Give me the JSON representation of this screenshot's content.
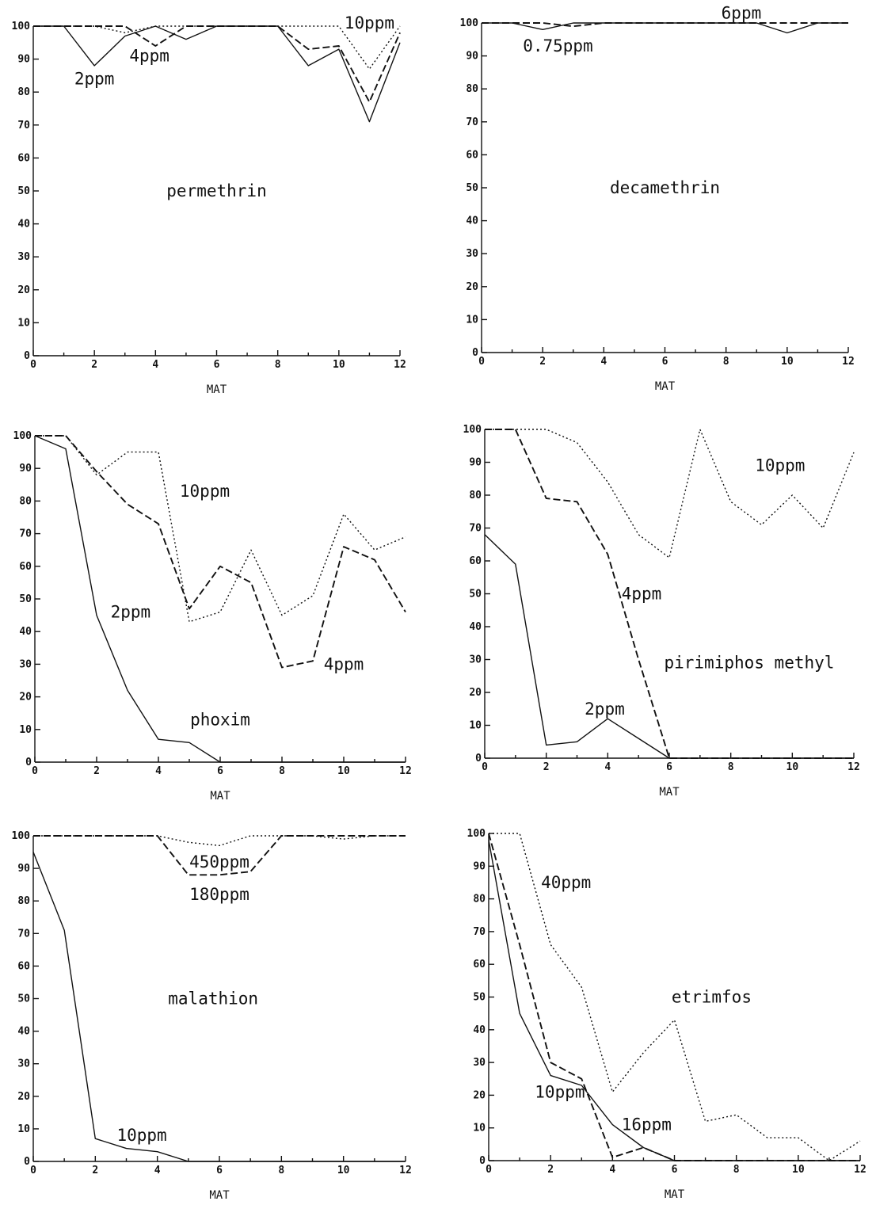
{
  "chart_data": [
    {
      "type": "line",
      "xlabel": "MAT",
      "ylabel": "",
      "xlim": [
        0,
        12
      ],
      "ylim": [
        0,
        100
      ],
      "x_ticks": [
        "0",
        "2",
        "4",
        "6",
        "8",
        "10",
        "12"
      ],
      "y_ticks": [
        "0",
        "10",
        "20",
        "30",
        "40",
        "50",
        "60",
        "70",
        "80",
        "90",
        "100"
      ],
      "name": "permethrin",
      "series": [
        {
          "name": "2ppm",
          "style": "solid",
          "x": [
            0,
            1,
            2,
            3,
            4,
            5,
            6,
            7,
            8,
            9,
            10,
            11,
            12
          ],
          "values": [
            100,
            100,
            88,
            97,
            100,
            96,
            100,
            100,
            100,
            88,
            93,
            71,
            95
          ]
        },
        {
          "name": "4ppm",
          "style": "dashed",
          "x": [
            0,
            1,
            2,
            3,
            4,
            5,
            6,
            7,
            8,
            9,
            10,
            11,
            12
          ],
          "values": [
            100,
            100,
            100,
            100,
            94,
            100,
            100,
            100,
            100,
            93,
            94,
            77,
            98
          ]
        },
        {
          "name": "10ppm",
          "style": "dotted",
          "x": [
            0,
            1,
            2,
            3,
            4,
            5,
            6,
            7,
            8,
            9,
            10,
            11,
            12
          ],
          "values": [
            100,
            100,
            100,
            98,
            100,
            100,
            100,
            100,
            100,
            100,
            100,
            87,
            100
          ]
        }
      ],
      "annotations": [
        {
          "text": "permethrin",
          "x": 6,
          "y": 50
        },
        {
          "text": "2ppm",
          "x": 2,
          "y": 84
        },
        {
          "text": "4ppm",
          "x": 3.8,
          "y": 91
        },
        {
          "text": "10ppm",
          "x": 11,
          "y": 101
        }
      ]
    },
    {
      "type": "line",
      "xlabel": "MAT",
      "ylabel": "",
      "xlim": [
        0,
        12
      ],
      "ylim": [
        0,
        100
      ],
      "x_ticks": [
        "0",
        "2",
        "4",
        "6",
        "8",
        "10",
        "12"
      ],
      "y_ticks": [
        "0",
        "10",
        "20",
        "30",
        "40",
        "50",
        "60",
        "70",
        "80",
        "90",
        "100"
      ],
      "name": "decamethrin",
      "series": [
        {
          "name": "0.75ppm",
          "style": "solid",
          "x": [
            0,
            1,
            2,
            3,
            4,
            5,
            6,
            7,
            8,
            9,
            10,
            11,
            12
          ],
          "values": [
            100,
            100,
            98,
            100,
            100,
            100,
            100,
            100,
            100,
            100,
            97,
            100,
            100
          ]
        },
        {
          "name": "6ppm",
          "style": "dashed",
          "x": [
            0,
            1,
            2,
            3,
            4,
            5,
            6,
            7,
            8,
            9,
            10,
            11,
            12
          ],
          "values": [
            100,
            100,
            100,
            99,
            100,
            100,
            100,
            100,
            100,
            100,
            100,
            100,
            100
          ]
        }
      ],
      "annotations": [
        {
          "text": "decamethrin",
          "x": 6,
          "y": 50
        },
        {
          "text": "0.75ppm",
          "x": 2.5,
          "y": 93
        },
        {
          "text": "6ppm",
          "x": 8.5,
          "y": 103
        }
      ]
    },
    {
      "type": "line",
      "xlabel": "MAT",
      "ylabel": "",
      "xlim": [
        0,
        12
      ],
      "ylim": [
        0,
        100
      ],
      "x_ticks": [
        "0",
        "2",
        "4",
        "6",
        "8",
        "10",
        "12"
      ],
      "y_ticks": [
        "0",
        "10",
        "20",
        "30",
        "40",
        "50",
        "60",
        "70",
        "80",
        "90",
        "100"
      ],
      "name": "phoxim",
      "series": [
        {
          "name": "2ppm",
          "style": "solid",
          "x": [
            0,
            1,
            2,
            3,
            4,
            5,
            6,
            7,
            8,
            9,
            10,
            11,
            12
          ],
          "values": [
            100,
            96,
            45,
            22,
            7,
            6,
            0,
            0,
            0,
            0,
            0,
            0,
            0
          ]
        },
        {
          "name": "4ppm",
          "style": "dashed",
          "x": [
            0,
            1,
            2,
            3,
            4,
            5,
            6,
            7,
            8,
            9,
            10,
            11,
            12
          ],
          "values": [
            100,
            100,
            89,
            79,
            73,
            47,
            60,
            55,
            29,
            31,
            66,
            62,
            46
          ]
        },
        {
          "name": "10ppm",
          "style": "dotted",
          "x": [
            0,
            1,
            2,
            3,
            4,
            5,
            6,
            7,
            8,
            9,
            10,
            11,
            12
          ],
          "values": [
            100,
            100,
            88,
            95,
            95,
            43,
            46,
            65,
            45,
            51,
            76,
            65,
            69
          ]
        }
      ],
      "annotations": [
        {
          "text": "phoxim",
          "x": 6,
          "y": 13
        },
        {
          "text": "2ppm",
          "x": 3.1,
          "y": 46
        },
        {
          "text": "4ppm",
          "x": 10,
          "y": 30
        },
        {
          "text": "10ppm",
          "x": 5.5,
          "y": 83
        }
      ]
    },
    {
      "type": "line",
      "xlabel": "MAT",
      "ylabel": "",
      "xlim": [
        0,
        12
      ],
      "ylim": [
        0,
        100
      ],
      "x_ticks": [
        "0",
        "2",
        "4",
        "6",
        "8",
        "10",
        "12"
      ],
      "y_ticks": [
        "0",
        "10",
        "20",
        "30",
        "40",
        "50",
        "60",
        "70",
        "80",
        "90",
        "100"
      ],
      "name": "pirimiphos methyl",
      "series": [
        {
          "name": "2ppm",
          "style": "solid",
          "x": [
            0,
            1,
            2,
            3,
            4,
            5,
            6,
            7,
            8,
            9,
            10,
            11,
            12
          ],
          "values": [
            68,
            59,
            4,
            5,
            12,
            6,
            0,
            0,
            0,
            0,
            0,
            0,
            0
          ]
        },
        {
          "name": "4ppm",
          "style": "dashed",
          "x": [
            0,
            1,
            2,
            3,
            4,
            5,
            6,
            7,
            8,
            9,
            10,
            11,
            12
          ],
          "values": [
            100,
            100,
            79,
            78,
            62,
            30,
            0,
            0,
            0,
            0,
            0,
            0,
            0
          ]
        },
        {
          "name": "10ppm",
          "style": "dotted",
          "x": [
            0,
            1,
            2,
            3,
            4,
            5,
            6,
            7,
            8,
            9,
            10,
            11,
            12
          ],
          "values": [
            100,
            100,
            100,
            96,
            84,
            68,
            61,
            100,
            78,
            71,
            80,
            70,
            93
          ]
        }
      ],
      "annotations": [
        {
          "text": "pirimiphos methyl",
          "x": 8.6,
          "y": 29
        },
        {
          "text": "2ppm",
          "x": 3.9,
          "y": 15
        },
        {
          "text": "4ppm",
          "x": 5.1,
          "y": 50
        },
        {
          "text": "10ppm",
          "x": 9.6,
          "y": 89
        }
      ]
    },
    {
      "type": "line",
      "xlabel": "MAT",
      "ylabel": "",
      "xlim": [
        0,
        12
      ],
      "ylim": [
        0,
        100
      ],
      "x_ticks": [
        "0",
        "2",
        "4",
        "6",
        "8",
        "10",
        "12"
      ],
      "y_ticks": [
        "0",
        "10",
        "20",
        "30",
        "40",
        "50",
        "60",
        "70",
        "80",
        "90",
        "100"
      ],
      "name": "malathion",
      "series": [
        {
          "name": "10ppm",
          "style": "solid",
          "x": [
            0,
            1,
            2,
            3,
            4,
            5,
            6,
            7,
            8,
            9,
            10,
            11,
            12
          ],
          "values": [
            95,
            71,
            7,
            4,
            3,
            0,
            0,
            0,
            0,
            0,
            0,
            0,
            0
          ]
        },
        {
          "name": "180ppm",
          "style": "dashed",
          "x": [
            0,
            1,
            2,
            3,
            4,
            5,
            6,
            7,
            8,
            9,
            10,
            11,
            12
          ],
          "values": [
            100,
            100,
            100,
            100,
            100,
            88,
            88,
            89,
            100,
            100,
            100,
            100,
            100
          ]
        },
        {
          "name": "450ppm",
          "style": "dotted",
          "x": [
            0,
            1,
            2,
            3,
            4,
            5,
            6,
            7,
            8,
            9,
            10,
            11,
            12
          ],
          "values": [
            100,
            100,
            100,
            100,
            100,
            98,
            97,
            100,
            100,
            100,
            99,
            100,
            100
          ]
        }
      ],
      "annotations": [
        {
          "text": "malathion",
          "x": 5.8,
          "y": 50
        },
        {
          "text": "10ppm",
          "x": 3.5,
          "y": 8
        },
        {
          "text": "450ppm",
          "x": 6,
          "y": 92
        },
        {
          "text": "180ppm",
          "x": 6,
          "y": 82
        }
      ]
    },
    {
      "type": "line",
      "xlabel": "MAT",
      "ylabel": "",
      "xlim": [
        0,
        12
      ],
      "ylim": [
        0,
        100
      ],
      "x_ticks": [
        "0",
        "2",
        "4",
        "6",
        "8",
        "10",
        "12"
      ],
      "y_ticks": [
        "0",
        "10",
        "20",
        "30",
        "40",
        "50",
        "60",
        "70",
        "80",
        "90",
        "100"
      ],
      "name": "etrimfos",
      "series": [
        {
          "name": "10ppm",
          "style": "solid",
          "x": [
            0,
            1,
            2,
            3,
            4,
            5,
            6,
            7,
            8,
            9,
            10,
            11,
            12
          ],
          "values": [
            98,
            45,
            26,
            23,
            11,
            4,
            0,
            0,
            0,
            0,
            0,
            0,
            0
          ]
        },
        {
          "name": "16ppm",
          "style": "dashed",
          "x": [
            0,
            1,
            2,
            3,
            4,
            5,
            6,
            7,
            8,
            9,
            10,
            11,
            12
          ],
          "values": [
            100,
            66,
            30,
            25,
            1,
            4,
            0,
            0,
            0,
            0,
            0,
            0,
            0
          ]
        },
        {
          "name": "40ppm",
          "style": "dotted",
          "x": [
            0,
            1,
            2,
            3,
            4,
            5,
            6,
            7,
            8,
            9,
            10,
            11,
            12
          ],
          "values": [
            100,
            100,
            66,
            53,
            21,
            33,
            43,
            12,
            14,
            7,
            7,
            0,
            6
          ]
        }
      ],
      "annotations": [
        {
          "text": "etrimfos",
          "x": 7.2,
          "y": 50
        },
        {
          "text": "40ppm",
          "x": 2.5,
          "y": 85
        },
        {
          "text": "10ppm",
          "x": 2.3,
          "y": 21
        },
        {
          "text": "16ppm",
          "x": 5.1,
          "y": 11
        }
      ]
    }
  ]
}
